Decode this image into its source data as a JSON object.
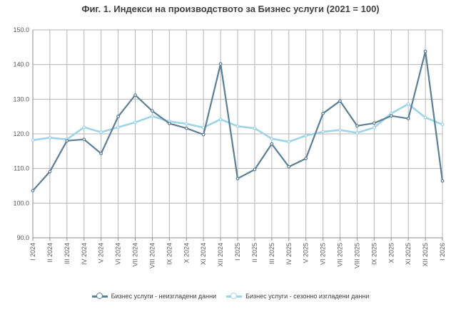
{
  "chart_data": {
    "type": "line",
    "title": "Фиг. 1. Индекси на производството за Бизнес услуги (2021 = 100)",
    "xlabel": "",
    "ylabel": "",
    "ylim": [
      90,
      150
    ],
    "yticks": [
      "90.0",
      "100.0",
      "110.0",
      "120.0",
      "130.0",
      "140.0",
      "150.0"
    ],
    "grid": true,
    "legend_position": "bottom",
    "categories": [
      "I 2024",
      "II 2024",
      "III 2024",
      "IV 2024",
      "V 2024",
      "VI 2024",
      "VII 2024",
      "VIII 2024",
      "IX 2024",
      "X 2024",
      "XI 2024",
      "XII 2024",
      "I 2025",
      "II 2025",
      "III 2025",
      "IV 2025",
      "V 2025",
      "VI 2025",
      "VII 2025",
      "VIII 2025",
      "IX 2025",
      "X 2025",
      "XI 2025",
      "XII 2025",
      "I 2026"
    ],
    "series": [
      {
        "name": "Бизнес услуги - неизгладени данни",
        "color": "#5b7f95",
        "values": [
          103.6,
          109.1,
          118.0,
          118.4,
          114.3,
          125.0,
          131.2,
          126.6,
          123.0,
          121.6,
          119.8,
          140.2,
          107.1,
          109.7,
          117.1,
          110.5,
          112.9,
          125.9,
          129.5,
          122.3,
          123.1,
          125.2,
          124.4,
          143.8,
          106.4
        ]
      },
      {
        "name": "Бизнес услуги - сезонно изгладени данни",
        "color": "#9fd3e8",
        "values": [
          118.2,
          118.9,
          118.4,
          121.9,
          120.5,
          121.9,
          123.3,
          125.1,
          123.6,
          122.9,
          121.8,
          124.2,
          122.2,
          121.6,
          118.6,
          117.7,
          119.5,
          120.6,
          121.1,
          120.3,
          121.8,
          125.9,
          128.6,
          124.7,
          122.7
        ]
      }
    ]
  }
}
